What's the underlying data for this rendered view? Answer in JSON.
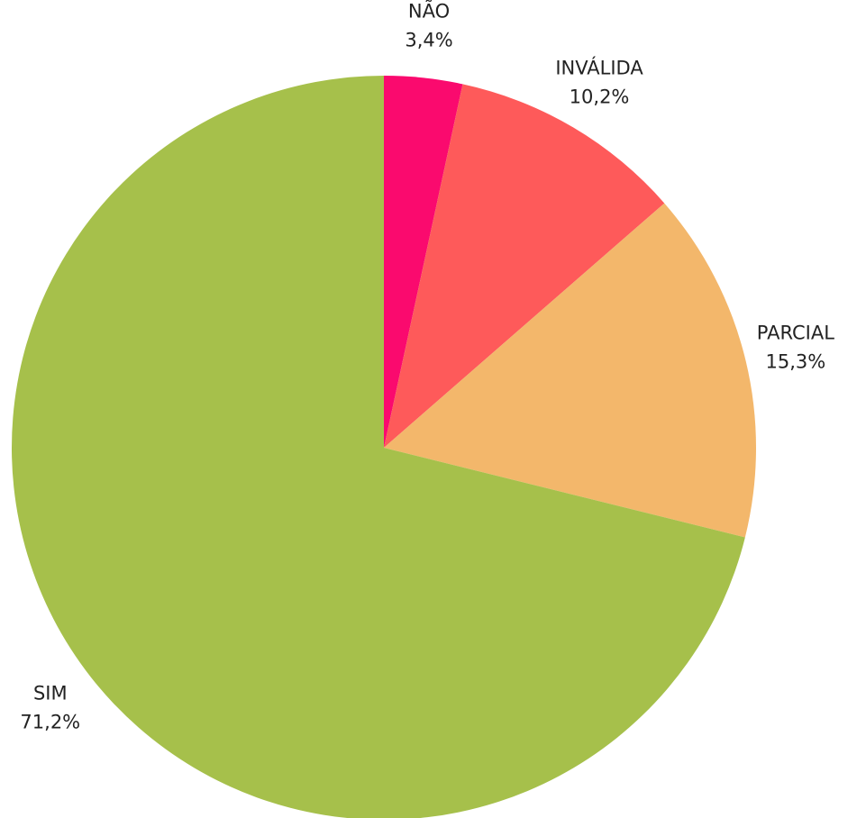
{
  "chart_data": {
    "type": "pie",
    "categories": [
      "NÃO",
      "INVÁLIDA",
      "PARCIAL",
      "SIM"
    ],
    "values": [
      3.4,
      10.2,
      15.3,
      71.2
    ],
    "value_labels": [
      "3,4%",
      "10,2%",
      "15,3%",
      "71,2%"
    ],
    "colors": [
      "#fa0a6e",
      "#fe5a5a",
      "#f3b76b",
      "#a6c04b"
    ]
  }
}
